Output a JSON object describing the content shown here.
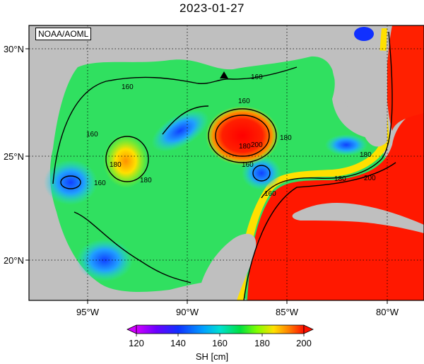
{
  "title": "2023-01-27",
  "credit": "NOAA/AOML",
  "axes": {
    "x_ticks": [
      "95°W",
      "90°W",
      "85°W",
      "80°W"
    ],
    "y_ticks": [
      "30°N",
      "25°N",
      "20°N"
    ]
  },
  "colorbar": {
    "ticks": [
      "120",
      "140",
      "160",
      "180",
      "200"
    ],
    "label": "SH [cm]",
    "min": 120,
    "max": 200,
    "colors": [
      "#d100ff",
      "#5a00ff",
      "#0040ff",
      "#00aaff",
      "#00e0e0",
      "#00e060",
      "#40ff00",
      "#c0ff00",
      "#ffe000",
      "#ff8000",
      "#ff1000"
    ]
  },
  "contour_labels": [
    "160",
    "160",
    "160",
    "160",
    "160",
    "160",
    "160",
    "180",
    "180",
    "180",
    "180",
    "180",
    "200",
    "200",
    "180"
  ],
  "marker": {
    "shape": "triangle",
    "color": "#000000"
  },
  "colors": {
    "land": "#bfbfbf",
    "ocean_warm": "#ff2000",
    "ocean_mid": "#40e040",
    "ocean_cool": "#30b0ff",
    "frame": "#000000"
  }
}
